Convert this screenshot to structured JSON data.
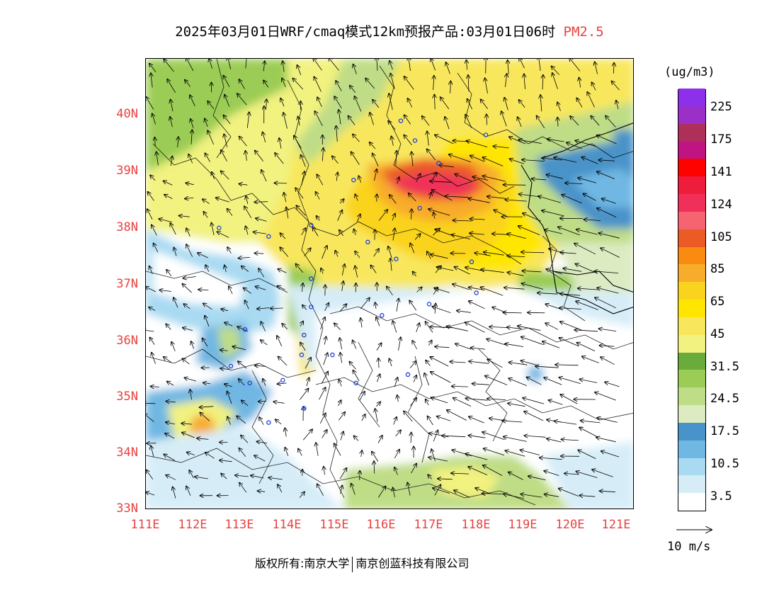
{
  "title": {
    "main": "2025年03月01日WRF/cmaq模式12km预报产品:03月01日06时",
    "field": "PM2.5"
  },
  "axes": {
    "lat_labels": [
      "40N",
      "39N",
      "38N",
      "37N",
      "36N",
      "35N",
      "34N",
      "33N"
    ],
    "lon_labels": [
      "111E",
      "112E",
      "113E",
      "114E",
      "115E",
      "116E",
      "117E",
      "118E",
      "119E",
      "120E",
      "121E"
    ]
  },
  "colorbar": {
    "unit": "(ug/m3)",
    "labels": [
      "225",
      "175",
      "141",
      "124",
      "105",
      "85",
      "65",
      "45",
      "31.5",
      "24.5",
      "17.5",
      "10.5",
      "3.5"
    ],
    "colors": [
      "#ffffff",
      "#d6edf8",
      "#a9daf2",
      "#70b7e3",
      "#4893c9",
      "#dcebc2",
      "#bfdd86",
      "#9bcc55",
      "#6aac3c",
      "#f1f27f",
      "#f8e75d",
      "#ffe600",
      "#fad31f",
      "#f8ac2c",
      "#f88b10",
      "#eb5b25",
      "#f56470",
      "#f03059",
      "#ee1d3b",
      "#fe0200",
      "#c01483",
      "#ae2f5a",
      "#9b30c9",
      "#8c30ea"
    ]
  },
  "wind_reference": {
    "label": "10 m/s"
  },
  "footer": {
    "left": "版权所有:南京大学",
    "right": "南京创蓝科技有限公司"
  },
  "stations": [
    {
      "lon": 115.4,
      "lat": 38.85
    },
    {
      "lon": 116.4,
      "lat": 39.9
    },
    {
      "lon": 116.7,
      "lat": 39.55
    },
    {
      "lon": 117.2,
      "lat": 39.15
    },
    {
      "lon": 118.2,
      "lat": 39.65
    },
    {
      "lon": 116.8,
      "lat": 38.35
    },
    {
      "lon": 115.7,
      "lat": 37.75
    },
    {
      "lon": 116.3,
      "lat": 37.45
    },
    {
      "lon": 114.5,
      "lat": 38.05
    },
    {
      "lon": 113.6,
      "lat": 37.85
    },
    {
      "lon": 112.55,
      "lat": 38.0
    },
    {
      "lon": 114.5,
      "lat": 37.1
    },
    {
      "lon": 114.5,
      "lat": 36.6
    },
    {
      "lon": 117.9,
      "lat": 37.4
    },
    {
      "lon": 118.0,
      "lat": 36.85
    },
    {
      "lon": 117.0,
      "lat": 36.65
    },
    {
      "lon": 116.0,
      "lat": 36.45
    },
    {
      "lon": 114.35,
      "lat": 36.1
    },
    {
      "lon": 113.1,
      "lat": 36.2
    },
    {
      "lon": 114.3,
      "lat": 35.75
    },
    {
      "lon": 114.95,
      "lat": 35.75
    },
    {
      "lon": 115.45,
      "lat": 35.25
    },
    {
      "lon": 116.55,
      "lat": 35.4
    },
    {
      "lon": 112.8,
      "lat": 35.55
    },
    {
      "lon": 113.2,
      "lat": 35.25
    },
    {
      "lon": 113.9,
      "lat": 35.3
    },
    {
      "lon": 114.35,
      "lat": 34.8
    },
    {
      "lon": 113.6,
      "lat": 34.55
    }
  ]
}
